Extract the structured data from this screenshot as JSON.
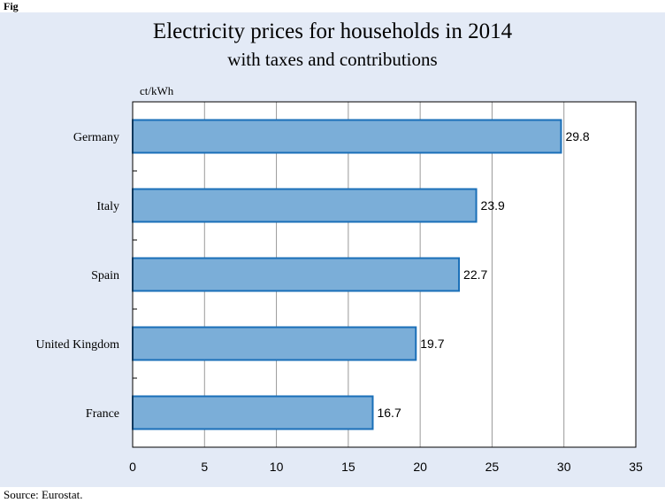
{
  "figure_label": "Fig",
  "source": "Source: Eurostat.",
  "colors": {
    "background": "#e3eaf6",
    "bar_fill": "#7baed8",
    "bar_stroke": "#1a6fb8",
    "grid": "#999999"
  },
  "chart_data": {
    "type": "bar",
    "orientation": "horizontal",
    "title": "Electricity prices for households in 2014",
    "subtitle": "with taxes and contributions",
    "unit": "ct/kWh",
    "categories": [
      "Germany",
      "Italy",
      "Spain",
      "United Kingdom",
      "France"
    ],
    "values": [
      29.8,
      23.9,
      22.7,
      19.7,
      16.7
    ],
    "data_labels": [
      "29.8",
      "23.9",
      "22.7",
      "19.7",
      "16.7"
    ],
    "xlim": [
      0,
      35
    ],
    "xticks": [
      0,
      5,
      10,
      15,
      20,
      25,
      30,
      35
    ],
    "xtick_labels": [
      "0",
      "5",
      "10",
      "15",
      "20",
      "25",
      "30",
      "35"
    ],
    "grid": "vertical",
    "legend": "none"
  }
}
